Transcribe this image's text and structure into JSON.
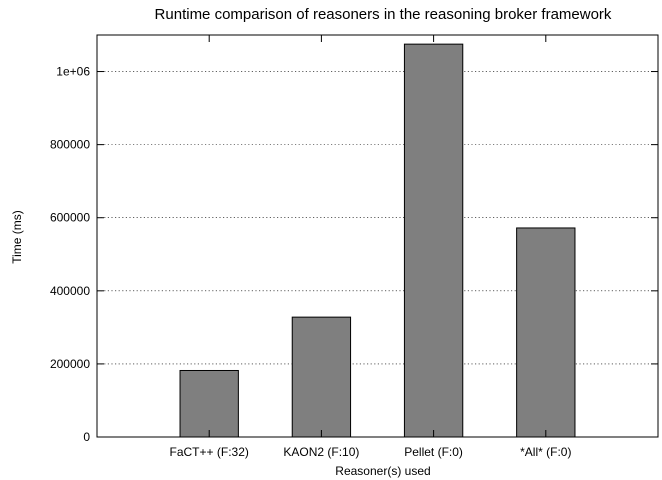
{
  "chart_data": {
    "type": "bar",
    "title": "Runtime comparison of reasoners in the reasoning broker framework",
    "xlabel": "Reasoner(s) used",
    "ylabel": "Time (ms)",
    "categories": [
      "FaCT++ (F:32)",
      "KAON2 (F:10)",
      "Pellet (F:0)",
      "*All* (F:0)"
    ],
    "values": [
      182000,
      328000,
      1075000,
      572000
    ],
    "ylim": [
      0,
      1100000
    ],
    "yticks": [
      0,
      200000,
      400000,
      600000,
      800000,
      1000000
    ],
    "ytick_labels": [
      "0",
      "200000",
      "400000",
      "600000",
      "800000",
      "1e+06"
    ],
    "grid": true,
    "legend": "none",
    "bar_color": "#7f7f7f"
  }
}
